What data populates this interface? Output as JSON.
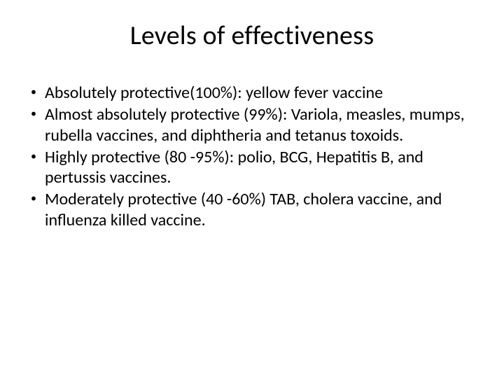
{
  "slide": {
    "title": "Levels of effectiveness",
    "bullets": [
      "Absolutely protective(100%): yellow fever vaccine",
      "Almost absolutely protective (99%): Variola, measles, mumps, rubella vaccines, and diphtheria and tetanus toxoids.",
      "Highly protective (80 -95%): polio, BCG, Hepatitis B, and pertussis vaccines.",
      "Moderately protective (40 -60%) TAB, cholera vaccine, and influenza killed vaccine."
    ]
  },
  "style": {
    "background_color": "#ffffff",
    "text_color": "#000000",
    "title_fontsize": 38,
    "title_fontweight": 400,
    "body_fontsize": 24,
    "bullet_marker": "•",
    "font_family": "Calibri"
  }
}
